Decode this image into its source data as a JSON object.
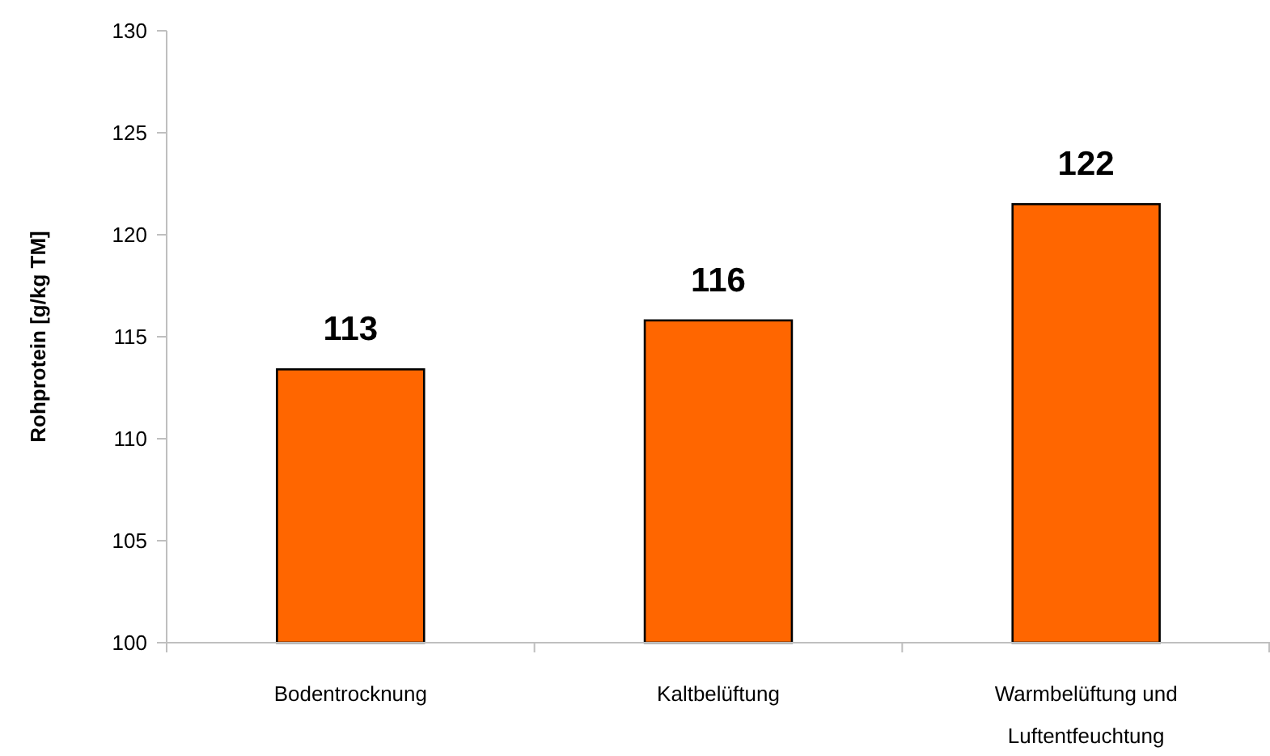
{
  "chart_data": {
    "type": "bar",
    "ylabel": "Rohprotein [g/kg TM]",
    "categories": [
      "Bodentrocknung",
      "Kaltbelüftung",
      "Warmbelüftung und Luftentfeuchtung"
    ],
    "values": [
      113.4,
      115.8,
      121.5
    ],
    "value_labels": [
      "113",
      "116",
      "122"
    ],
    "color": "#ff6600",
    "ylim": [
      100,
      130
    ],
    "yticks": [
      100,
      105,
      110,
      115,
      120,
      125,
      130
    ],
    "grid": false
  }
}
